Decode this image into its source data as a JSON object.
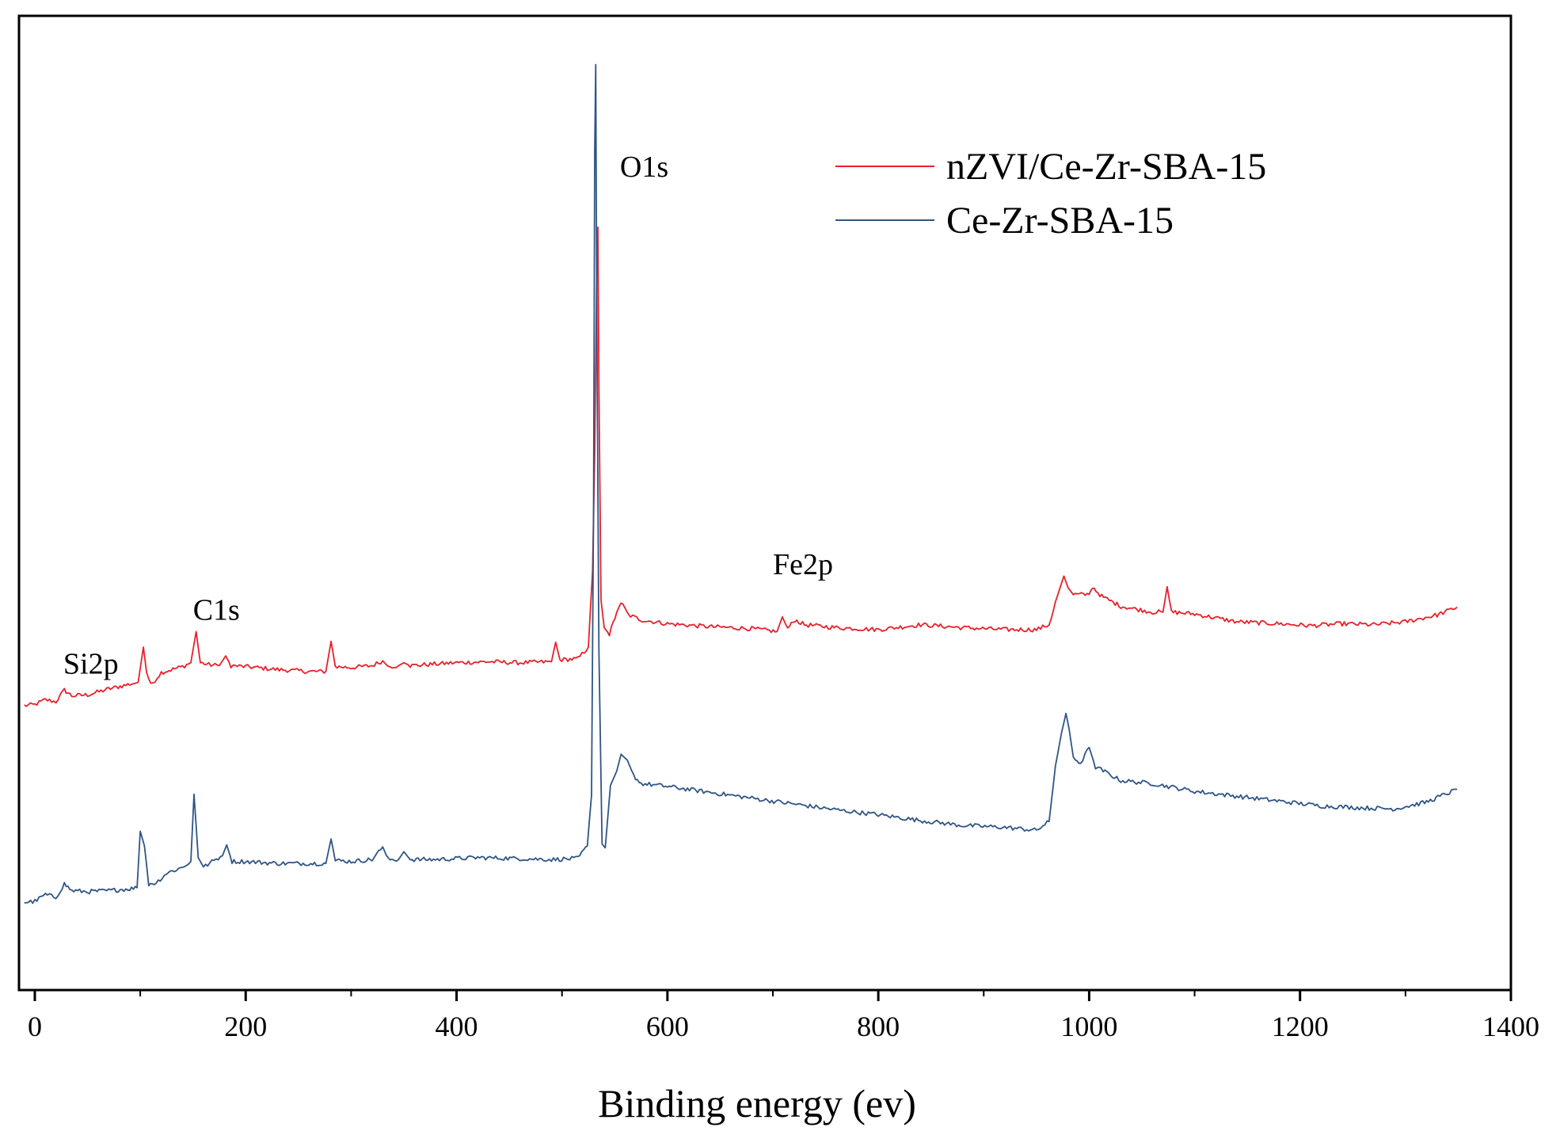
{
  "chart_data": {
    "type": "line",
    "title": "",
    "xlabel": "Binding energy (ev)",
    "ylabel": "",
    "xlim": [
      -15,
      1400
    ],
    "ylim": [
      0,
      100
    ],
    "xticks": [
      0,
      200,
      400,
      600,
      800,
      1000,
      1200,
      1400
    ],
    "xtick_labels": [
      "0",
      "200",
      "400",
      "600",
      "800",
      "1000",
      "1200",
      "1400"
    ],
    "minor_xticks": [
      100,
      300,
      500,
      700,
      900,
      1100,
      1300
    ],
    "y_ticks_shown": false,
    "grid": false,
    "legend_position": "top-right",
    "series": [
      {
        "name": "nZVI/Ce-Zr-SBA-15",
        "color": "#e8202a",
        "points": [
          [
            -10,
            29.2
          ],
          [
            0,
            29.3
          ],
          [
            10,
            29.8
          ],
          [
            20,
            29.6
          ],
          [
            28,
            30.8
          ],
          [
            35,
            30.2
          ],
          [
            50,
            30.3
          ],
          [
            70,
            30.9
          ],
          [
            90,
            31.4
          ],
          [
            98,
            31.6
          ],
          [
            103,
            35.2
          ],
          [
            106,
            32.6
          ],
          [
            110,
            31.3
          ],
          [
            120,
            32.6
          ],
          [
            140,
            33.2
          ],
          [
            148,
            33.6
          ],
          [
            153,
            36.8
          ],
          [
            157,
            33.6
          ],
          [
            165,
            33.4
          ],
          [
            175,
            33.3
          ],
          [
            181,
            34.3
          ],
          [
            186,
            33.3
          ],
          [
            200,
            33.2
          ],
          [
            230,
            32.9
          ],
          [
            260,
            32.7
          ],
          [
            276,
            32.7
          ],
          [
            281,
            35.8
          ],
          [
            285,
            33.2
          ],
          [
            300,
            33.1
          ],
          [
            320,
            33.3
          ],
          [
            330,
            33.8
          ],
          [
            335,
            33.2
          ],
          [
            345,
            33.3
          ],
          [
            350,
            33.6
          ],
          [
            356,
            33.3
          ],
          [
            400,
            33.6
          ],
          [
            430,
            33.7
          ],
          [
            460,
            33.6
          ],
          [
            490,
            33.7
          ],
          [
            494,
            35.7
          ],
          [
            498,
            33.9
          ],
          [
            515,
            34.0
          ],
          [
            525,
            35.2
          ],
          [
            529,
            43.0
          ],
          [
            531,
            55.0
          ],
          [
            533,
            74.2
          ],
          [
            534,
            78.3
          ],
          [
            535,
            62.0
          ],
          [
            537,
            40.0
          ],
          [
            540,
            37.2
          ],
          [
            545,
            36.5
          ],
          [
            552,
            38.8
          ],
          [
            556,
            39.8
          ],
          [
            563,
            38.5
          ],
          [
            575,
            38.0
          ],
          [
            600,
            37.6
          ],
          [
            640,
            37.3
          ],
          [
            680,
            37.1
          ],
          [
            704,
            36.8
          ],
          [
            709,
            38.3
          ],
          [
            714,
            37.1
          ],
          [
            721,
            38.0
          ],
          [
            730,
            37.5
          ],
          [
            760,
            37.2
          ],
          [
            800,
            37.0
          ],
          [
            840,
            37.5
          ],
          [
            880,
            37.2
          ],
          [
            920,
            37.0
          ],
          [
            950,
            37.0
          ],
          [
            962,
            37.5
          ],
          [
            970,
            40.5
          ],
          [
            976,
            42.5
          ],
          [
            980,
            41.3
          ],
          [
            985,
            40.6
          ],
          [
            1000,
            40.6
          ],
          [
            1003,
            41.4
          ],
          [
            1012,
            40.4
          ],
          [
            1030,
            39.4
          ],
          [
            1060,
            38.8
          ],
          [
            1070,
            38.8
          ],
          [
            1074,
            41.4
          ],
          [
            1078,
            38.8
          ],
          [
            1100,
            38.6
          ],
          [
            1140,
            37.8
          ],
          [
            1180,
            37.6
          ],
          [
            1210,
            37.4
          ],
          [
            1240,
            37.6
          ],
          [
            1270,
            37.5
          ],
          [
            1300,
            37.8
          ],
          [
            1330,
            38.5
          ],
          [
            1349,
            39.3
          ]
        ]
      },
      {
        "name": "Ce-Zr-SBA-15",
        "color": "#2f5585",
        "points": [
          [
            -10,
            9.0
          ],
          [
            0,
            9.1
          ],
          [
            10,
            9.8
          ],
          [
            20,
            9.5
          ],
          [
            28,
            10.9
          ],
          [
            35,
            10.2
          ],
          [
            50,
            10.1
          ],
          [
            70,
            10.2
          ],
          [
            90,
            10.4
          ],
          [
            97,
            10.5
          ],
          [
            100,
            16.3
          ],
          [
            104,
            14.8
          ],
          [
            108,
            10.9
          ],
          [
            115,
            11.0
          ],
          [
            125,
            12.0
          ],
          [
            140,
            12.6
          ],
          [
            148,
            13.2
          ],
          [
            151,
            20.1
          ],
          [
            155,
            13.6
          ],
          [
            160,
            12.6
          ],
          [
            170,
            13.3
          ],
          [
            178,
            13.8
          ],
          [
            182,
            14.9
          ],
          [
            187,
            13.2
          ],
          [
            200,
            13.2
          ],
          [
            230,
            13.0
          ],
          [
            260,
            13.0
          ],
          [
            276,
            13.0
          ],
          [
            281,
            15.5
          ],
          [
            285,
            13.3
          ],
          [
            300,
            13.2
          ],
          [
            320,
            13.4
          ],
          [
            330,
            14.7
          ],
          [
            335,
            13.4
          ],
          [
            345,
            13.4
          ],
          [
            350,
            14.2
          ],
          [
            356,
            13.4
          ],
          [
            380,
            13.4
          ],
          [
            420,
            13.6
          ],
          [
            460,
            13.5
          ],
          [
            490,
            13.4
          ],
          [
            515,
            13.5
          ],
          [
            524,
            14.8
          ],
          [
            528,
            20.0
          ],
          [
            530,
            50.0
          ],
          [
            531,
            86.0
          ],
          [
            532,
            95.0
          ],
          [
            533,
            70.0
          ],
          [
            535,
            35.0
          ],
          [
            538,
            15.0
          ],
          [
            541,
            14.6
          ],
          [
            546,
            21.0
          ],
          [
            552,
            22.5
          ],
          [
            556,
            24.2
          ],
          [
            562,
            23.6
          ],
          [
            568,
            22.0
          ],
          [
            575,
            21.2
          ],
          [
            600,
            20.9
          ],
          [
            640,
            20.3
          ],
          [
            680,
            19.7
          ],
          [
            720,
            19.1
          ],
          [
            760,
            18.5
          ],
          [
            800,
            18.0
          ],
          [
            840,
            17.4
          ],
          [
            880,
            16.9
          ],
          [
            920,
            16.7
          ],
          [
            950,
            16.4
          ],
          [
            962,
            17.3
          ],
          [
            968,
            23.0
          ],
          [
            974,
            26.5
          ],
          [
            978,
            28.4
          ],
          [
            981,
            26.8
          ],
          [
            985,
            23.8
          ],
          [
            992,
            23.3
          ],
          [
            1000,
            24.9
          ],
          [
            1006,
            22.9
          ],
          [
            1015,
            22.4
          ],
          [
            1030,
            21.5
          ],
          [
            1060,
            21.2
          ],
          [
            1100,
            20.4
          ],
          [
            1140,
            19.9
          ],
          [
            1180,
            19.4
          ],
          [
            1220,
            18.9
          ],
          [
            1260,
            18.7
          ],
          [
            1290,
            18.6
          ],
          [
            1320,
            19.3
          ],
          [
            1340,
            20.2
          ],
          [
            1349,
            20.6
          ]
        ]
      }
    ],
    "annotations": [
      {
        "text": "Si2p",
        "x": 27,
        "y": 32.5
      },
      {
        "text": "C1s",
        "x": 150,
        "y": 38.0
      },
      {
        "text": "O1s",
        "x": 555,
        "y": 83.5
      },
      {
        "text": "Fe2p",
        "x": 700,
        "y": 42.7
      }
    ]
  }
}
